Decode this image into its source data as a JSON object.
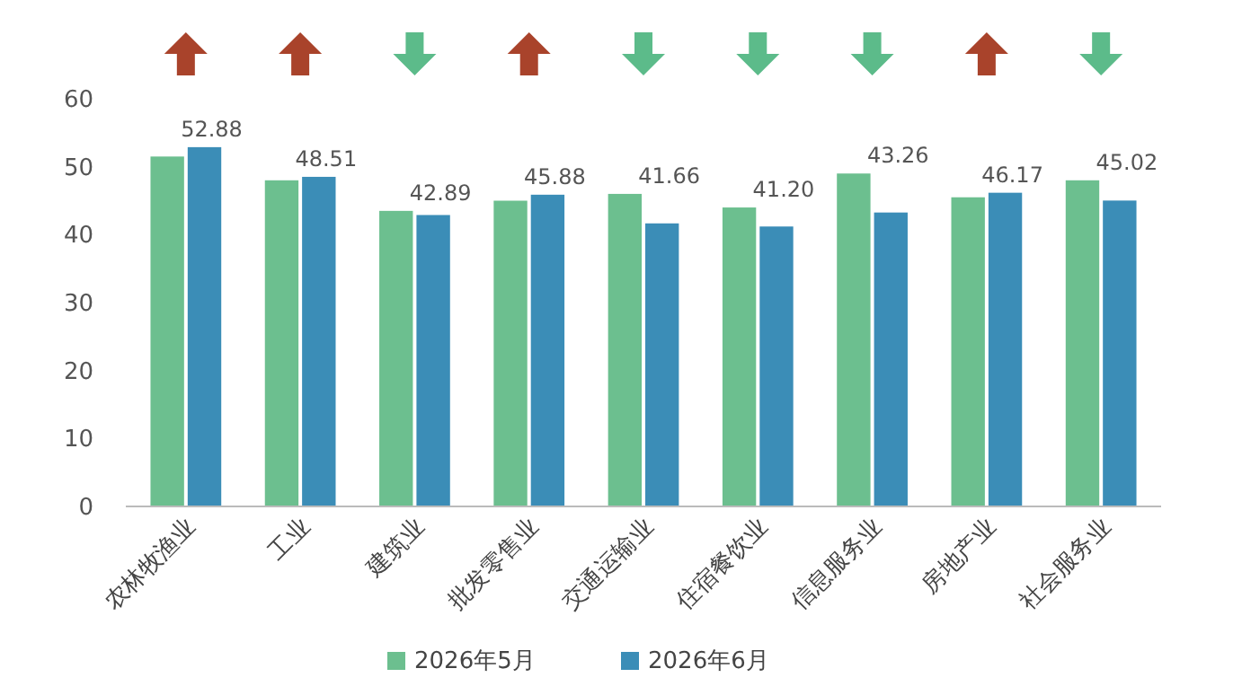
{
  "chart_data": {
    "type": "bar",
    "categories": [
      "农林牧渔业",
      "工业",
      "建筑业",
      "批发零售业",
      "交通运输业",
      "住宿餐饮业",
      "信息服务业",
      "房地产业",
      "社会服务业"
    ],
    "series": [
      {
        "name": "2026年5月",
        "color": "#6cbf8f",
        "values": [
          51.5,
          48,
          43.5,
          45,
          46,
          44,
          49,
          45.5,
          48
        ]
      },
      {
        "name": "2026年6月",
        "color": "#3b8db7",
        "values": [
          52.88,
          48.51,
          42.89,
          45.88,
          41.66,
          41.2,
          43.26,
          46.17,
          45.02
        ],
        "value_labels": [
          "52.88",
          "48.51",
          "42.89",
          "45.88",
          "41.66",
          "41.20",
          "43.26",
          "46.17",
          "45.02"
        ]
      }
    ],
    "ylim": [
      0,
      60
    ],
    "yticks": [
      0,
      10,
      20,
      30,
      40,
      50,
      60
    ],
    "grid": false,
    "legend": "bottom"
  }
}
